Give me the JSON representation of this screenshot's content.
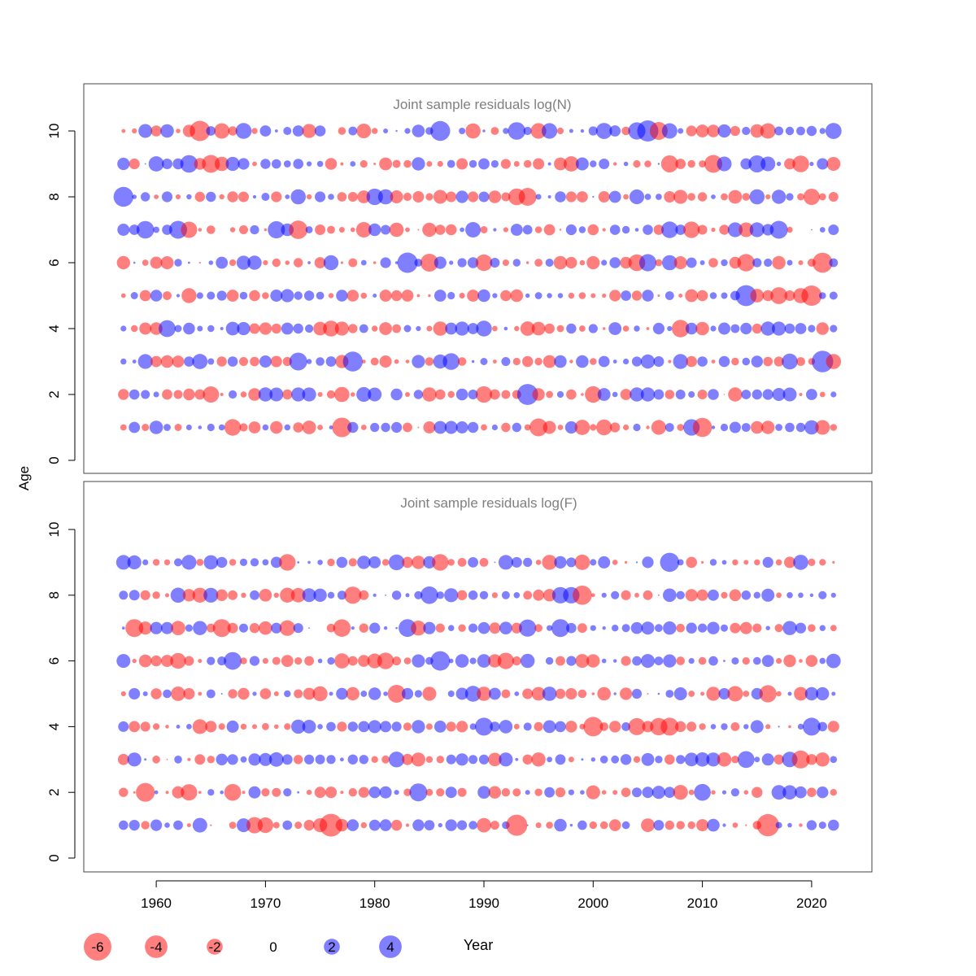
{
  "chart_data": {
    "type": "scatter",
    "encoding": "bubble",
    "xlabel": "Year",
    "ylabel": "Age",
    "xlim": [
      1953,
      2025
    ],
    "x_ticks": [
      1960,
      1970,
      1980,
      1990,
      2000,
      2010,
      2020
    ],
    "colors": {
      "negative": "#ff0000",
      "positive": "#0000ff",
      "opacity": 0.5
    },
    "panels": [
      {
        "title": "Joint sample residuals log(N)",
        "ylim": [
          0,
          11
        ],
        "y_ticks": [
          0,
          2,
          4,
          6,
          8,
          10
        ],
        "years": [
          1957,
          2022
        ],
        "ages": [
          1,
          2,
          3,
          4,
          5,
          6,
          7,
          8,
          9,
          10
        ],
        "peak_residuals": [
          {
            "x": 1964,
            "y": 10,
            "value": -3.6
          },
          {
            "x": 2005,
            "y": 10,
            "value": 3.9
          },
          {
            "x": 1986,
            "y": 10,
            "value": 3.4
          },
          {
            "x": 1957,
            "y": 8,
            "value": 3.4
          },
          {
            "x": 1973,
            "y": 7,
            "value": -3.0
          },
          {
            "x": 1983,
            "y": 6,
            "value": 3.6
          },
          {
            "x": 2021,
            "y": 6,
            "value": -3.5
          },
          {
            "x": 2014,
            "y": 5,
            "value": 3.8
          },
          {
            "x": 2020,
            "y": 5,
            "value": -3.6
          },
          {
            "x": 1978,
            "y": 3,
            "value": 3.4
          },
          {
            "x": 2021,
            "y": 3,
            "value": 4.0
          },
          {
            "x": 1994,
            "y": 2,
            "value": 3.8
          },
          {
            "x": 1977,
            "y": 1,
            "value": -3.3
          },
          {
            "x": 2010,
            "y": 1,
            "value": -3.2
          }
        ]
      },
      {
        "title": "Joint sample residuals log(F)",
        "ylim": [
          0,
          11
        ],
        "y_ticks": [
          0,
          2,
          4,
          6,
          8,
          10
        ],
        "years": [
          1957,
          2022
        ],
        "ages": [
          1,
          2,
          3,
          4,
          5,
          6,
          7,
          8,
          9
        ],
        "peak_residuals": [
          {
            "x": 1976,
            "y": 1,
            "value": -4.5
          },
          {
            "x": 2016,
            "y": 1,
            "value": -4.3
          },
          {
            "x": 1993,
            "y": 1,
            "value": -3.9
          },
          {
            "x": 1986,
            "y": 6,
            "value": 3.3
          },
          {
            "x": 2000,
            "y": 4,
            "value": -3.3
          },
          {
            "x": 1999,
            "y": 8,
            "value": -3.2
          },
          {
            "x": 2007,
            "y": 9,
            "value": 3.2
          },
          {
            "x": 1959,
            "y": 2,
            "value": -3.1
          }
        ]
      }
    ],
    "size_legend": {
      "values": [
        -6,
        -4,
        -2,
        0,
        2,
        4
      ],
      "labels": [
        "-6",
        "-4",
        "-2",
        "0",
        "2",
        "4"
      ]
    }
  }
}
